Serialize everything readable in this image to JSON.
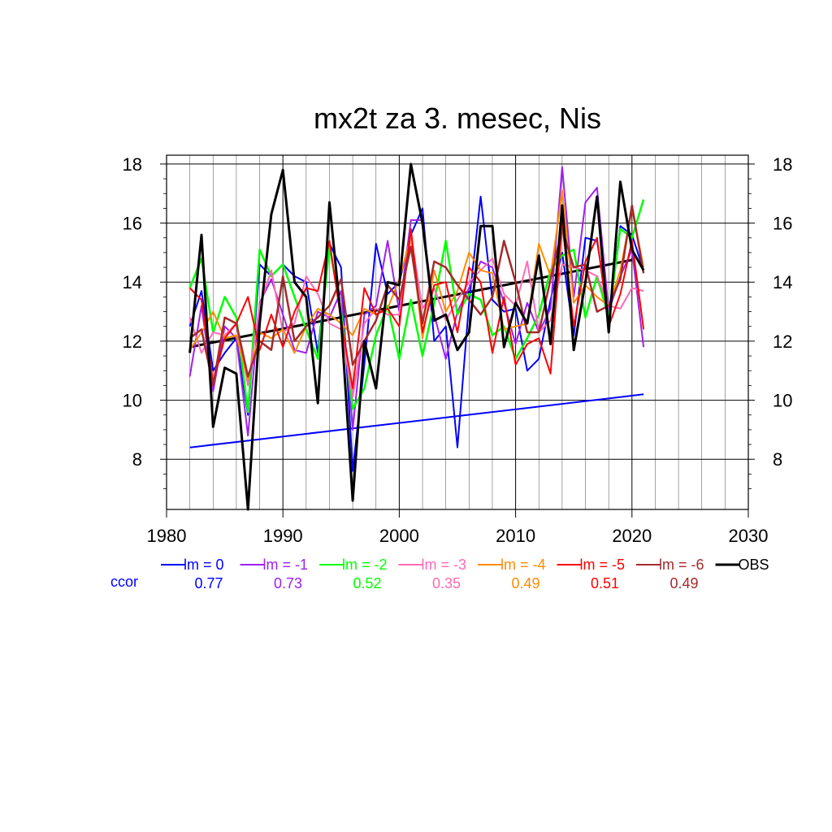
{
  "chart_data": {
    "type": "line",
    "title": "mx2t za 3. mesec, Nis",
    "xlabel": "",
    "ylabel": "",
    "xlim": [
      1980,
      2030
    ],
    "ylim": [
      6.3,
      18.3
    ],
    "x_ticks": [
      1980,
      1990,
      2000,
      2010,
      2020,
      2030
    ],
    "y_ticks": [
      8,
      10,
      12,
      14,
      16,
      18
    ],
    "grid": true,
    "legend_position": "bottom",
    "x": [
      1982,
      1983,
      1984,
      1985,
      1986,
      1987,
      1988,
      1989,
      1990,
      1991,
      1992,
      1993,
      1994,
      1995,
      1996,
      1997,
      1998,
      1999,
      2000,
      2001,
      2002,
      2003,
      2004,
      2005,
      2006,
      2007,
      2008,
      2009,
      2010,
      2011,
      2012,
      2013,
      2014,
      2015,
      2016,
      2017,
      2018,
      2019,
      2020,
      2021
    ],
    "series": [
      {
        "name": "lm = 0",
        "color": "#0000ff",
        "width": 2,
        "values": [
          12.5,
          13.7,
          11.0,
          11.6,
          12.1,
          9.5,
          14.6,
          14.2,
          14.6,
          14.2,
          14.0,
          11.6,
          15.3,
          14.5,
          7.6,
          11.2,
          15.3,
          13.6,
          14.0,
          15.6,
          16.5,
          12.0,
          12.5,
          8.4,
          13.3,
          16.9,
          13.4,
          13.0,
          13.1,
          11.0,
          11.4,
          13.4,
          15.0,
          12.2,
          15.5,
          15.4,
          12.9,
          15.9,
          15.6,
          14.4
        ]
      },
      {
        "name": "lm = -1",
        "color": "#a020f0",
        "width": 2,
        "values": [
          10.8,
          13.2,
          10.3,
          12.5,
          12.1,
          8.8,
          13.3,
          14.1,
          12.9,
          11.7,
          11.6,
          13.0,
          12.8,
          13.7,
          9.0,
          12.9,
          13.2,
          15.4,
          13.0,
          16.1,
          16.1,
          12.9,
          11.4,
          13.0,
          13.8,
          14.7,
          14.5,
          13.3,
          11.9,
          13.3,
          12.3,
          13.1,
          17.9,
          13.5,
          16.7,
          17.2,
          13.0,
          14.2,
          15.1,
          11.8
        ]
      },
      {
        "name": "lm = -2",
        "color": "#00ff00",
        "width": 2.5,
        "values": [
          13.8,
          14.8,
          12.3,
          13.5,
          12.8,
          9.6,
          15.1,
          14.2,
          14.6,
          13.5,
          12.4,
          11.4,
          15.2,
          13.0,
          9.7,
          10.4,
          12.2,
          13.2,
          11.4,
          13.4,
          11.5,
          13.3,
          15.4,
          12.9,
          13.6,
          13.4,
          12.2,
          12.5,
          11.4,
          12.1,
          12.9,
          14.4,
          14.9,
          15.1,
          12.8,
          14.2,
          12.8,
          15.8,
          15.5,
          16.8
        ]
      },
      {
        "name": "lm = -3",
        "color": "#ff69b4",
        "width": 2,
        "values": [
          12.8,
          11.6,
          12.3,
          12.2,
          12.6,
          10.5,
          13.2,
          14.4,
          12.3,
          12.6,
          14.2,
          13.6,
          12.6,
          12.4,
          10.1,
          12.6,
          13.1,
          12.9,
          12.9,
          15.6,
          13.1,
          13.8,
          12.7,
          13.4,
          14.0,
          14.4,
          14.8,
          13.6,
          13.2,
          14.7,
          12.3,
          12.7,
          14.6,
          14.5,
          14.4,
          14.2,
          13.2,
          13.1,
          13.8,
          13.7
        ]
      },
      {
        "name": "lm = -4",
        "color": "#ff8c00",
        "width": 2,
        "values": [
          11.7,
          12.3,
          13.0,
          12.1,
          12.2,
          10.7,
          12.3,
          12.1,
          12.4,
          11.6,
          12.5,
          13.1,
          12.9,
          12.6,
          12.2,
          13.1,
          12.9,
          13.1,
          14.1,
          15.5,
          12.1,
          14.4,
          13.0,
          13.7,
          15.0,
          14.4,
          14.3,
          12.4,
          12.5,
          12.6,
          15.3,
          14.2,
          17.1,
          13.3,
          13.9,
          13.5,
          13.2,
          14.4,
          16.5,
          14.5
        ]
      },
      {
        "name": "lm = -5",
        "color": "#ff0000",
        "width": 2,
        "values": [
          13.8,
          13.4,
          10.6,
          12.1,
          12.6,
          13.5,
          11.7,
          12.9,
          11.8,
          13.0,
          13.8,
          13.7,
          15.4,
          12.7,
          10.4,
          13.8,
          12.9,
          13.1,
          12.5,
          15.8,
          12.3,
          13.9,
          14.0,
          12.3,
          14.5,
          14.0,
          11.6,
          13.5,
          11.2,
          11.9,
          12.1,
          10.9,
          16.0,
          12.5,
          14.7,
          15.5,
          12.5,
          13.6,
          15.4,
          12.4
        ]
      },
      {
        "name": "lm = -6",
        "color": "#a52a2a",
        "width": 2.5,
        "values": [
          12.1,
          12.4,
          10.5,
          12.8,
          12.6,
          10.8,
          12.0,
          11.7,
          14.2,
          12.0,
          12.5,
          12.8,
          13.2,
          14.1,
          11.2,
          12.0,
          12.7,
          13.9,
          13.4,
          15.2,
          12.6,
          14.7,
          14.5,
          13.9,
          13.4,
          12.9,
          13.5,
          15.4,
          14.0,
          12.3,
          12.3,
          14.1,
          15.8,
          14.5,
          14.6,
          13.0,
          13.2,
          14.1,
          16.6,
          14.3
        ]
      },
      {
        "name": "OBS",
        "color": "#000000",
        "width": 3,
        "values": [
          11.6,
          15.6,
          9.1,
          11.1,
          10.9,
          6.3,
          12.6,
          16.3,
          17.8,
          14.0,
          13.5,
          9.9,
          16.7,
          12.7,
          6.6,
          12.0,
          10.4,
          14.0,
          13.9,
          18.0,
          16.0,
          12.7,
          12.9,
          11.7,
          12.3,
          15.9,
          15.9,
          11.8,
          13.3,
          12.6,
          14.9,
          11.9,
          16.6,
          11.7,
          14.0,
          16.9,
          12.3,
          17.4,
          15.1,
          14.4
        ]
      }
    ],
    "trend_lines": [
      {
        "color": "#0000ff",
        "width": 2,
        "x": [
          1982,
          2021
        ],
        "values": [
          8.4,
          10.2
        ]
      },
      {
        "color": "#000000",
        "width": 3,
        "x": [
          1982,
          2020
        ],
        "values": [
          11.8,
          14.75
        ]
      }
    ],
    "ccor": {
      "label": "ccor",
      "label_color": "#0000ff",
      "values": [
        "0.77",
        "0.73",
        "0.52",
        "0.35",
        "0.49",
        "0.51",
        "0.49"
      ]
    }
  }
}
